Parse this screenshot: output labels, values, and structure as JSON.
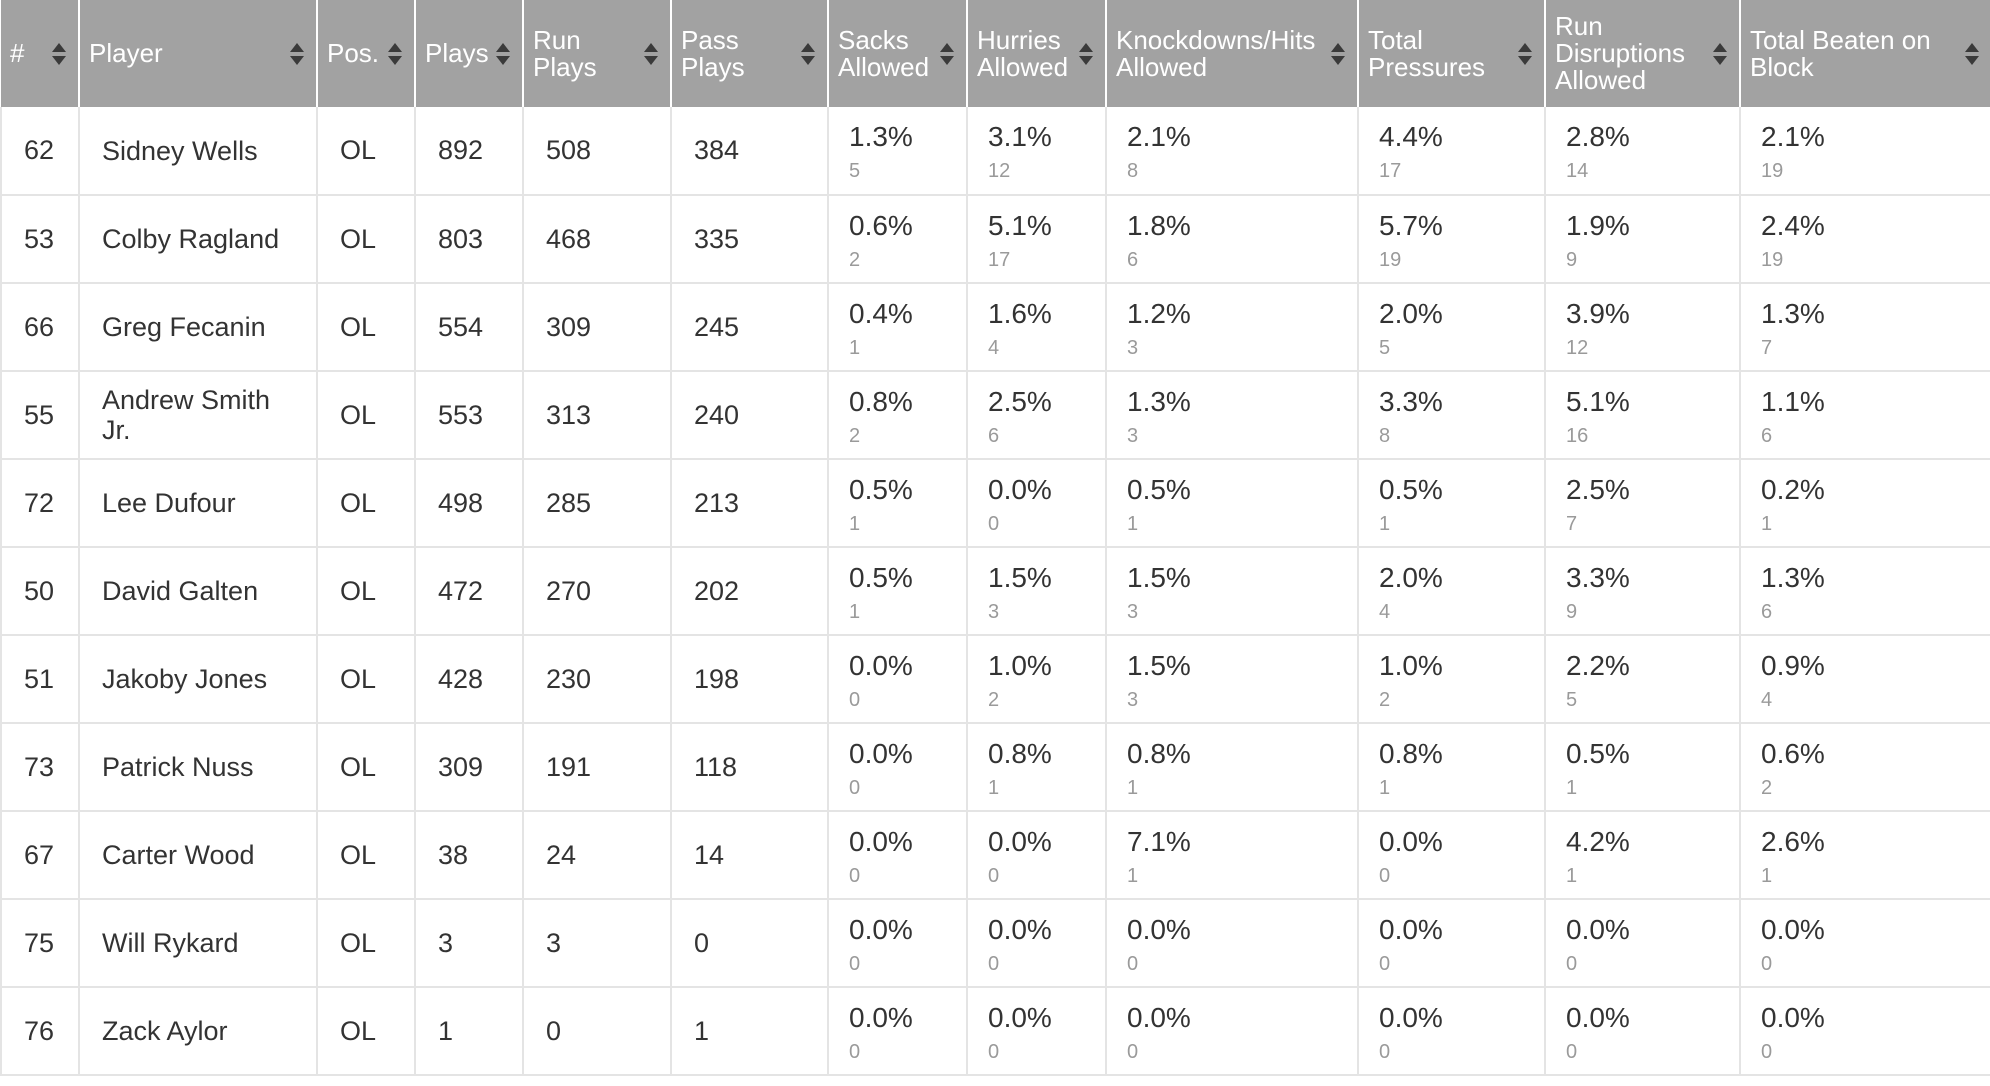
{
  "columns": [
    {
      "key": "num",
      "label": "#"
    },
    {
      "key": "player",
      "label": "Player"
    },
    {
      "key": "pos",
      "label": "Pos."
    },
    {
      "key": "plays",
      "label": "Plays"
    },
    {
      "key": "run_plays",
      "label": "Run Plays"
    },
    {
      "key": "pass_plays",
      "label": "Pass Plays"
    },
    {
      "key": "sacks",
      "label": "Sacks Allowed"
    },
    {
      "key": "hurries",
      "label": "Hurries Allowed"
    },
    {
      "key": "knockdowns",
      "label": "Knockdowns/Hits Allowed"
    },
    {
      "key": "pressures",
      "label": "Total Pressures"
    },
    {
      "key": "run_disruptions",
      "label": "Run Disruptions Allowed"
    },
    {
      "key": "beaten",
      "label": "Total Beaten on Block"
    }
  ],
  "sort_icon": "sort-arrows-icon",
  "rows": [
    {
      "num": "62",
      "player": "Sidney Wells",
      "pos": "OL",
      "plays": "892",
      "run_plays": "508",
      "pass_plays": "384",
      "sacks": {
        "pct": "1.3%",
        "count": "5"
      },
      "hurries": {
        "pct": "3.1%",
        "count": "12"
      },
      "knockdowns": {
        "pct": "2.1%",
        "count": "8"
      },
      "pressures": {
        "pct": "4.4%",
        "count": "17"
      },
      "run_disruptions": {
        "pct": "2.8%",
        "count": "14"
      },
      "beaten": {
        "pct": "2.1%",
        "count": "19"
      }
    },
    {
      "num": "53",
      "player": "Colby Ragland",
      "pos": "OL",
      "plays": "803",
      "run_plays": "468",
      "pass_plays": "335",
      "sacks": {
        "pct": "0.6%",
        "count": "2"
      },
      "hurries": {
        "pct": "5.1%",
        "count": "17"
      },
      "knockdowns": {
        "pct": "1.8%",
        "count": "6"
      },
      "pressures": {
        "pct": "5.7%",
        "count": "19"
      },
      "run_disruptions": {
        "pct": "1.9%",
        "count": "9"
      },
      "beaten": {
        "pct": "2.4%",
        "count": "19"
      }
    },
    {
      "num": "66",
      "player": "Greg Fecanin",
      "pos": "OL",
      "plays": "554",
      "run_plays": "309",
      "pass_plays": "245",
      "sacks": {
        "pct": "0.4%",
        "count": "1"
      },
      "hurries": {
        "pct": "1.6%",
        "count": "4"
      },
      "knockdowns": {
        "pct": "1.2%",
        "count": "3"
      },
      "pressures": {
        "pct": "2.0%",
        "count": "5"
      },
      "run_disruptions": {
        "pct": "3.9%",
        "count": "12"
      },
      "beaten": {
        "pct": "1.3%",
        "count": "7"
      }
    },
    {
      "num": "55",
      "player": "Andrew Smith Jr.",
      "pos": "OL",
      "plays": "553",
      "run_plays": "313",
      "pass_plays": "240",
      "sacks": {
        "pct": "0.8%",
        "count": "2"
      },
      "hurries": {
        "pct": "2.5%",
        "count": "6"
      },
      "knockdowns": {
        "pct": "1.3%",
        "count": "3"
      },
      "pressures": {
        "pct": "3.3%",
        "count": "8"
      },
      "run_disruptions": {
        "pct": "5.1%",
        "count": "16"
      },
      "beaten": {
        "pct": "1.1%",
        "count": "6"
      }
    },
    {
      "num": "72",
      "player": "Lee Dufour",
      "pos": "OL",
      "plays": "498",
      "run_plays": "285",
      "pass_plays": "213",
      "sacks": {
        "pct": "0.5%",
        "count": "1"
      },
      "hurries": {
        "pct": "0.0%",
        "count": "0"
      },
      "knockdowns": {
        "pct": "0.5%",
        "count": "1"
      },
      "pressures": {
        "pct": "0.5%",
        "count": "1"
      },
      "run_disruptions": {
        "pct": "2.5%",
        "count": "7"
      },
      "beaten": {
        "pct": "0.2%",
        "count": "1"
      }
    },
    {
      "num": "50",
      "player": "David Galten",
      "pos": "OL",
      "plays": "472",
      "run_plays": "270",
      "pass_plays": "202",
      "sacks": {
        "pct": "0.5%",
        "count": "1"
      },
      "hurries": {
        "pct": "1.5%",
        "count": "3"
      },
      "knockdowns": {
        "pct": "1.5%",
        "count": "3"
      },
      "pressures": {
        "pct": "2.0%",
        "count": "4"
      },
      "run_disruptions": {
        "pct": "3.3%",
        "count": "9"
      },
      "beaten": {
        "pct": "1.3%",
        "count": "6"
      }
    },
    {
      "num": "51",
      "player": "Jakoby Jones",
      "pos": "OL",
      "plays": "428",
      "run_plays": "230",
      "pass_plays": "198",
      "sacks": {
        "pct": "0.0%",
        "count": "0"
      },
      "hurries": {
        "pct": "1.0%",
        "count": "2"
      },
      "knockdowns": {
        "pct": "1.5%",
        "count": "3"
      },
      "pressures": {
        "pct": "1.0%",
        "count": "2"
      },
      "run_disruptions": {
        "pct": "2.2%",
        "count": "5"
      },
      "beaten": {
        "pct": "0.9%",
        "count": "4"
      }
    },
    {
      "num": "73",
      "player": "Patrick Nuss",
      "pos": "OL",
      "plays": "309",
      "run_plays": "191",
      "pass_plays": "118",
      "sacks": {
        "pct": "0.0%",
        "count": "0"
      },
      "hurries": {
        "pct": "0.8%",
        "count": "1"
      },
      "knockdowns": {
        "pct": "0.8%",
        "count": "1"
      },
      "pressures": {
        "pct": "0.8%",
        "count": "1"
      },
      "run_disruptions": {
        "pct": "0.5%",
        "count": "1"
      },
      "beaten": {
        "pct": "0.6%",
        "count": "2"
      }
    },
    {
      "num": "67",
      "player": "Carter Wood",
      "pos": "OL",
      "plays": "38",
      "run_plays": "24",
      "pass_plays": "14",
      "sacks": {
        "pct": "0.0%",
        "count": "0"
      },
      "hurries": {
        "pct": "0.0%",
        "count": "0"
      },
      "knockdowns": {
        "pct": "7.1%",
        "count": "1"
      },
      "pressures": {
        "pct": "0.0%",
        "count": "0"
      },
      "run_disruptions": {
        "pct": "4.2%",
        "count": "1"
      },
      "beaten": {
        "pct": "2.6%",
        "count": "1"
      }
    },
    {
      "num": "75",
      "player": "Will Rykard",
      "pos": "OL",
      "plays": "3",
      "run_plays": "3",
      "pass_plays": "0",
      "sacks": {
        "pct": "0.0%",
        "count": "0"
      },
      "hurries": {
        "pct": "0.0%",
        "count": "0"
      },
      "knockdowns": {
        "pct": "0.0%",
        "count": "0"
      },
      "pressures": {
        "pct": "0.0%",
        "count": "0"
      },
      "run_disruptions": {
        "pct": "0.0%",
        "count": "0"
      },
      "beaten": {
        "pct": "0.0%",
        "count": "0"
      }
    },
    {
      "num": "76",
      "player": "Zack Aylor",
      "pos": "OL",
      "plays": "1",
      "run_plays": "0",
      "pass_plays": "1",
      "sacks": {
        "pct": "0.0%",
        "count": "0"
      },
      "hurries": {
        "pct": "0.0%",
        "count": "0"
      },
      "knockdowns": {
        "pct": "0.0%",
        "count": "0"
      },
      "pressures": {
        "pct": "0.0%",
        "count": "0"
      },
      "run_disruptions": {
        "pct": "0.0%",
        "count": "0"
      },
      "beaten": {
        "pct": "0.0%",
        "count": "0"
      }
    }
  ]
}
